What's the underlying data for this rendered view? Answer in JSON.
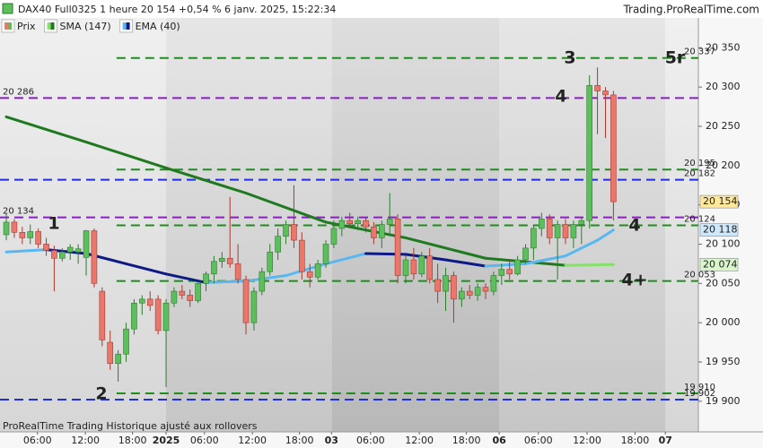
{
  "chart_data": {
    "type": "candlestick",
    "title": "DAX40 Full0325 1 heure 20 154 +0,54 % 6 janv. 2025, 15:22:34",
    "source": "Trading.ProRealTime.com",
    "footnote": "ProRealTime Trading  Historique ajusté aux rollovers",
    "ylim": [
      19861,
      20388
    ],
    "yticks": [
      {
        "value": 20350,
        "label": "20 350"
      },
      {
        "value": 20300,
        "label": "20 300"
      },
      {
        "value": 20250,
        "label": "20 250"
      },
      {
        "value": 20200,
        "label": "20 200"
      },
      {
        "value": 20150,
        "label": "20 150"
      },
      {
        "value": 20100,
        "label": "20 100"
      },
      {
        "value": 20050,
        "label": "20 050"
      },
      {
        "value": 20000,
        "label": "20 000"
      },
      {
        "value": 19950,
        "label": "19 950"
      },
      {
        "value": 19900,
        "label": "19 900"
      }
    ],
    "xlim": [
      -0.79,
      86.63
    ],
    "xticks": [
      {
        "value": 3.9,
        "label": "06:00"
      },
      {
        "value": 9.9,
        "label": "12:00"
      },
      {
        "value": 15.8,
        "label": "18:00"
      },
      {
        "value": 20,
        "label": "2025"
      },
      {
        "value": 24.8,
        "label": "06:00"
      },
      {
        "value": 30.8,
        "label": "12:00"
      },
      {
        "value": 36.7,
        "label": "18:00"
      },
      {
        "value": 40.7,
        "label": "03"
      },
      {
        "value": 45.6,
        "label": "06:00"
      },
      {
        "value": 51.7,
        "label": "12:00"
      },
      {
        "value": 57.6,
        "label": "18:00"
      },
      {
        "value": 61.7,
        "label": "06"
      },
      {
        "value": 66.6,
        "label": "06:00"
      },
      {
        "value": 72.7,
        "label": "12:00"
      },
      {
        "value": 78.7,
        "label": "18:00"
      },
      {
        "value": 82.5,
        "label": "07"
      }
    ],
    "series": [
      {
        "name": "Prix",
        "type": "candlestick",
        "color_up": "#5cbf5c",
        "color_down": "#e8776c",
        "x": [
          0,
          1,
          2,
          3,
          4,
          5,
          6,
          7,
          8,
          9,
          10,
          11,
          12,
          13,
          14,
          15,
          16,
          17,
          18,
          19,
          20,
          21,
          22,
          23,
          24,
          25,
          26,
          27,
          28,
          29,
          30,
          31,
          32,
          33,
          34,
          35,
          36,
          37,
          38,
          39,
          40,
          41,
          42,
          43,
          44,
          45,
          46,
          47,
          48,
          49,
          50,
          51,
          52,
          53,
          54,
          55,
          56,
          57,
          58,
          59,
          60,
          61,
          62,
          63,
          64,
          65,
          66,
          67,
          68,
          69,
          70,
          71,
          72,
          73,
          74,
          75,
          76
        ],
        "open": [
          20112,
          20128,
          20115,
          20108,
          20116,
          20100,
          20092,
          20082,
          20090,
          20090,
          20083,
          20117,
          20040,
          19975,
          19948,
          19960,
          19992,
          20025,
          20030,
          20030,
          19990,
          20025,
          20040,
          20035,
          20028,
          20050,
          20062,
          20078,
          20082,
          20075,
          20055,
          20000,
          20040,
          20065,
          20090,
          20110,
          20125,
          20105,
          20065,
          20058,
          20075,
          20100,
          20120,
          20130,
          20126,
          20130,
          20122,
          20108,
          20125,
          20132,
          20060,
          20080,
          20062,
          20085,
          20055,
          20040,
          20060,
          20030,
          20040,
          20035,
          20045,
          20040,
          20060,
          20068,
          20062,
          20080,
          20095,
          20120,
          20132,
          20108,
          20125,
          20108,
          20125,
          20130,
          20302,
          20295,
          20290
        ],
        "high": [
          20140,
          20132,
          20122,
          20125,
          20120,
          20108,
          20098,
          20095,
          20100,
          20100,
          20118,
          20120,
          20045,
          19990,
          19965,
          20000,
          20030,
          20035,
          20040,
          20035,
          20030,
          20045,
          20048,
          20042,
          20052,
          20065,
          20085,
          20090,
          20160,
          20100,
          20060,
          20045,
          20070,
          20100,
          20120,
          20130,
          20175,
          20115,
          20075,
          20080,
          20105,
          20130,
          20135,
          20140,
          20135,
          20134,
          20128,
          20130,
          20165,
          20138,
          20085,
          20095,
          20090,
          20095,
          20075,
          20070,
          20065,
          20045,
          20048,
          20050,
          20050,
          20065,
          20075,
          20080,
          20085,
          20100,
          20125,
          20140,
          20138,
          20130,
          20132,
          20130,
          20135,
          20315,
          20325,
          20300,
          20295
        ],
        "low": [
          20105,
          20108,
          20100,
          20100,
          20095,
          20085,
          20040,
          20078,
          20080,
          20075,
          20060,
          20045,
          19970,
          19940,
          19925,
          19950,
          19985,
          20010,
          20015,
          19985,
          19918,
          20020,
          20030,
          20020,
          20025,
          20040,
          20050,
          20070,
          20070,
          20050,
          19985,
          19990,
          20035,
          20060,
          20080,
          20100,
          20095,
          20055,
          20045,
          20055,
          20070,
          20095,
          20110,
          20120,
          20118,
          20115,
          20100,
          20095,
          20110,
          20050,
          20050,
          20055,
          20058,
          20050,
          20025,
          20015,
          20000,
          20020,
          20030,
          20028,
          20030,
          20035,
          20048,
          20055,
          20060,
          20075,
          20080,
          20110,
          20100,
          20055,
          20100,
          20095,
          20100,
          20120,
          20240,
          20235,
          20130
        ],
        "close": [
          20128,
          20115,
          20108,
          20116,
          20100,
          20092,
          20082,
          20090,
          20096,
          20094,
          20117,
          20050,
          19978,
          19948,
          19960,
          19992,
          20025,
          20030,
          20022,
          19990,
          20025,
          20040,
          20035,
          20028,
          20050,
          20062,
          20078,
          20082,
          20075,
          20055,
          20000,
          20040,
          20065,
          20090,
          20110,
          20125,
          20105,
          20065,
          20058,
          20075,
          20100,
          20120,
          20130,
          20126,
          20130,
          20122,
          20108,
          20125,
          20132,
          20060,
          20080,
          20062,
          20085,
          20055,
          20040,
          20060,
          20030,
          20040,
          20035,
          20045,
          20040,
          20060,
          20068,
          20062,
          20080,
          20095,
          20120,
          20132,
          20108,
          20125,
          20108,
          20125,
          20130,
          20302,
          20295,
          20290,
          20154
        ]
      },
      {
        "name": "SMA (147)",
        "type": "line",
        "color_down": "#1f7a1f",
        "color_up": "#86e06a",
        "x": [
          0,
          10,
          20,
          30,
          40,
          50,
          60,
          70,
          76
        ],
        "values": [
          20262,
          20230,
          20197,
          20165,
          20128,
          20108,
          20082,
          20073,
          20074
        ]
      },
      {
        "name": "EMA (40)",
        "type": "line",
        "color_down": "#0d1a85",
        "color_up": "#5ab8f0",
        "x": [
          0,
          5,
          10,
          15,
          20,
          25,
          30,
          35,
          40,
          45,
          50,
          55,
          60,
          65,
          70,
          74,
          76
        ],
        "values": [
          20090,
          20093,
          20088,
          20075,
          20062,
          20051,
          20053,
          20060,
          20075,
          20088,
          20087,
          20080,
          20072,
          20075,
          20085,
          20105,
          20118
        ]
      }
    ],
    "levels": [
      {
        "value": 20337,
        "label": "20 337",
        "color": "#1e8c1e",
        "start": 13.8,
        "label_side": "right"
      },
      {
        "value": 20286,
        "label": "20 286",
        "color": "#8a1fc0",
        "label_side": "left"
      },
      {
        "value": 20195,
        "label": "20 195",
        "color": "#1e8c1e",
        "start": 13.8,
        "label_side": "right"
      },
      {
        "value": 20182,
        "label": "20 182",
        "color": "#1f2fe0",
        "label_side": "right"
      },
      {
        "value": 20134,
        "label": "20 134",
        "color": "#8a1fc0",
        "label_side": "left"
      },
      {
        "value": 20124,
        "label": "20 124",
        "color": "#1e8c1e",
        "start": 13.8,
        "label_side": "right"
      },
      {
        "value": 20053,
        "label": "20 053",
        "color": "#1e8c1e",
        "start": 13.8,
        "label_side": "right"
      },
      {
        "value": 19910,
        "label": "19 910",
        "color": "#1e8c1e",
        "start": 13.8,
        "label_side": "right"
      },
      {
        "value": 19902,
        "label": "19 902",
        "color": "#1f2fe0",
        "label_side": "right"
      }
    ],
    "price_tags": [
      {
        "value": 20154,
        "label": "20 154",
        "color": "#ffe89a"
      },
      {
        "value": 20118,
        "label": "20 118",
        "color": "#cfe8fb"
      },
      {
        "value": 20074,
        "label": "20 074",
        "color": "#d8f5cc"
      }
    ],
    "annotations": [
      {
        "text": "3",
        "color": "#1e8c1e"
      },
      {
        "text": "5r",
        "color": "#1e8c1e"
      },
      {
        "text": "4",
        "color": "#8a1fc0"
      },
      {
        "text": "4",
        "color": "#1e8c1e"
      },
      {
        "text": "4+",
        "color": "#1e8c1e"
      },
      {
        "text": "1",
        "color": "#1e8c1e"
      },
      {
        "text": "2",
        "color": "#1e8c1e"
      }
    ]
  }
}
